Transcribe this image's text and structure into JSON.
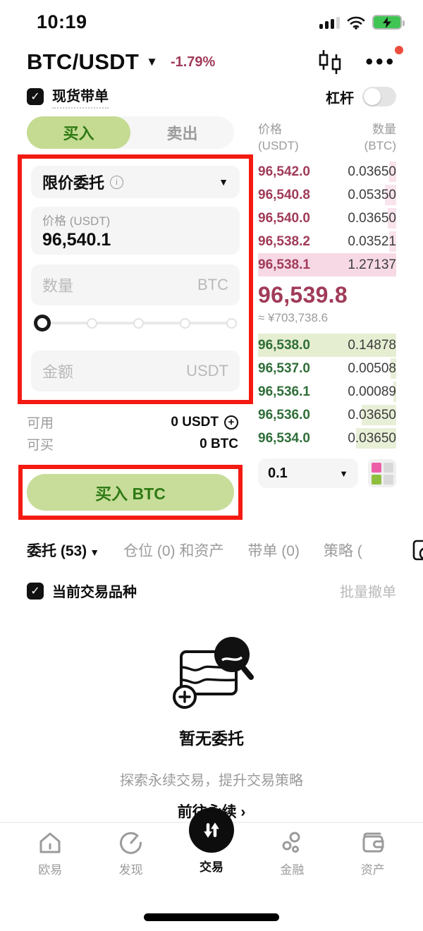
{
  "status_bar": {
    "time": "10:19"
  },
  "header": {
    "pair": "BTC/USDT",
    "change": "-1.79%"
  },
  "controls": {
    "copy_trading_label": "现货带单",
    "leverage_label": "杠杆"
  },
  "trade_tabs": {
    "buy": "买入",
    "sell": "卖出"
  },
  "order_form": {
    "order_type": "限价委托",
    "price_label": "价格 (USDT)",
    "price_value": "96,540.1",
    "amount_placeholder": "数量",
    "amount_unit": "BTC",
    "total_placeholder": "金额",
    "total_unit": "USDT",
    "available_label": "可用",
    "available_value": "0 USDT",
    "can_buy_label": "可买",
    "can_buy_value": "0 BTC",
    "buy_button": "买入 BTC"
  },
  "order_book": {
    "price_header": "价格",
    "price_header_unit": "(USDT)",
    "amount_header": "数量",
    "amount_header_unit": "(BTC)",
    "asks": [
      {
        "price": "96,542.0",
        "amount": "0.03650",
        "depth": "5%"
      },
      {
        "price": "96,540.8",
        "amount": "0.05350",
        "depth": "8%"
      },
      {
        "price": "96,540.0",
        "amount": "0.03650",
        "depth": "6%"
      },
      {
        "price": "96,538.2",
        "amount": "0.03521",
        "depth": "5%"
      },
      {
        "price": "96,538.1",
        "amount": "1.27137",
        "depth": "0%"
      }
    ],
    "last_price": "96,539.8",
    "fiat_value": "≈ ¥703,738.6",
    "bids": [
      {
        "price": "96,538.0",
        "amount": "0.14878",
        "depth": "0%"
      },
      {
        "price": "96,537.0",
        "amount": "0.00508",
        "depth": "4%"
      },
      {
        "price": "96,536.1",
        "amount": "0.00089",
        "depth": "2%"
      },
      {
        "price": "96,536.0",
        "amount": "0.03650",
        "depth": "25%"
      },
      {
        "price": "96,534.0",
        "amount": "0.03650",
        "depth": "29%"
      }
    ],
    "precision": "0.1"
  },
  "orders_section": {
    "tabs": [
      {
        "label": "委托 (53)"
      },
      {
        "label": "仓位 (0) 和资产"
      },
      {
        "label": "带单 (0)"
      },
      {
        "label": "策略 ("
      }
    ],
    "filter_label": "当前交易品种",
    "batch_cancel_label": "批量撤单",
    "empty_title": "暂无委托",
    "promo_text": "探索永续交易，提升交易策略",
    "promo_link": "前往永续 ›"
  },
  "bottom_nav": {
    "items": [
      {
        "label": "欧易"
      },
      {
        "label": "发现"
      },
      {
        "label": "交易"
      },
      {
        "label": "金融"
      },
      {
        "label": "资产"
      }
    ]
  },
  "colors": {
    "sell_red": "#a03b58",
    "buy_green": "#2f6e38",
    "buy_accent_bg": "#c8dd9a",
    "buy_accent_text": "#2f7a15",
    "annotation_red": "#f41a12",
    "battery_green": "#40c554",
    "ask_highlight": "#f7d9e6",
    "bid_highlight": "#e6eed2"
  }
}
